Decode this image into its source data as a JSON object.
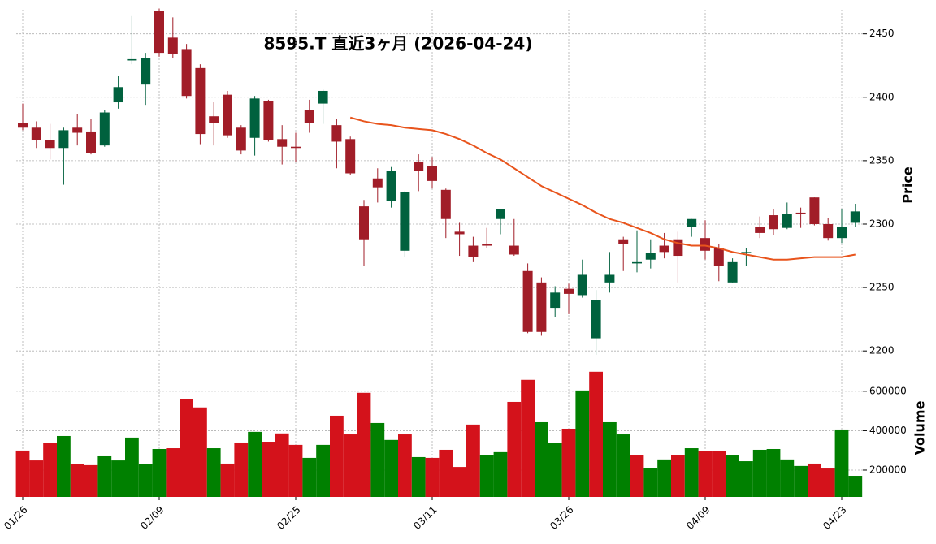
{
  "chart_data": {
    "type": "candlestick",
    "title": "8595.T 直近3ヶ月 (2026-04-24)",
    "ylabel": "Price",
    "categories": [
      "01/26",
      null,
      null,
      null,
      null,
      null,
      null,
      null,
      null,
      null,
      "02/09",
      null,
      null,
      null,
      null,
      null,
      null,
      null,
      null,
      null,
      "02/25",
      null,
      null,
      null,
      null,
      null,
      null,
      null,
      null,
      null,
      "03/11",
      null,
      null,
      null,
      null,
      null,
      null,
      null,
      null,
      null,
      "03/26",
      null,
      null,
      null,
      null,
      null,
      null,
      null,
      null,
      null,
      "04/09",
      null,
      null,
      null,
      null,
      null,
      null,
      null,
      null,
      null,
      "04/23",
      null
    ],
    "open": [
      2380,
      2376,
      2366,
      2360,
      2376,
      2373,
      2362,
      2396,
      2429,
      2410,
      2468,
      2447,
      2438,
      2423,
      2385,
      2402,
      2376,
      2368,
      2397,
      2367,
      2361,
      2390,
      2395,
      2378,
      2367,
      2314,
      2336,
      2318,
      2279,
      2349,
      2346,
      2327,
      2294,
      2283,
      2284,
      2304,
      2283,
      2263,
      2254,
      2234,
      2249,
      2244,
      2210,
      2254,
      2288,
      2269,
      2272,
      2283,
      2288,
      2298,
      2289,
      2281,
      2254,
      2277,
      2298,
      2307,
      2297,
      2309,
      2321,
      2300,
      2289,
      2301
    ],
    "high": [
      2395,
      2381,
      2379,
      2376,
      2387,
      2383,
      2390,
      2417,
      2464,
      2435,
      2470,
      2463,
      2442,
      2426,
      2396,
      2405,
      2378,
      2401,
      2398,
      2378,
      2372,
      2398,
      2406,
      2383,
      2369,
      2319,
      2344,
      2345,
      2326,
      2355,
      2353,
      2328,
      2301,
      2290,
      2297,
      2312,
      2304,
      2269,
      2258,
      2251,
      2253,
      2272,
      2248,
      2278,
      2290,
      2295,
      2288,
      2293,
      2294,
      2304,
      2303,
      2284,
      2273,
      2281,
      2306,
      2312,
      2317,
      2313,
      2321,
      2305,
      2312,
      2316
    ],
    "low": [
      2374,
      2360,
      2351,
      2331,
      2362,
      2355,
      2361,
      2391,
      2426,
      2394,
      2432,
      2431,
      2399,
      2363,
      2362,
      2368,
      2355,
      2354,
      2365,
      2347,
      2349,
      2372,
      2379,
      2344,
      2339,
      2267,
      2317,
      2313,
      2274,
      2326,
      2328,
      2289,
      2275,
      2270,
      2281,
      2292,
      2275,
      2214,
      2212,
      2227,
      2229,
      2242,
      2197,
      2246,
      2263,
      2262,
      2265,
      2273,
      2254,
      2290,
      2272,
      2255,
      2254,
      2267,
      2289,
      2291,
      2296,
      2297,
      2299,
      2287,
      2285,
      2298
    ],
    "close": [
      2376,
      2366,
      2360,
      2374,
      2372,
      2356,
      2388,
      2408,
      2430,
      2431,
      2435,
      2434,
      2401,
      2371,
      2380,
      2370,
      2358,
      2399,
      2366,
      2361,
      2360,
      2380,
      2405,
      2365,
      2340,
      2288,
      2329,
      2342,
      2325,
      2342,
      2334,
      2304,
      2292,
      2274,
      2283,
      2312,
      2276,
      2215,
      2215,
      2246,
      2245,
      2260,
      2240,
      2260,
      2284,
      2270,
      2277,
      2278,
      2275,
      2304,
      2279,
      2267,
      2270,
      2278,
      2293,
      2296,
      2308,
      2308,
      2300,
      2289,
      2298,
      2310
    ],
    "up_color": "#00613e",
    "down_color": "#a11d28",
    "ylim": [
      2195,
      2469
    ],
    "yticks": [
      2200,
      2250,
      2300,
      2350,
      2400,
      2450
    ],
    "grid": true,
    "ma": {
      "color": "#e8541c",
      "values": [
        null,
        null,
        null,
        null,
        null,
        null,
        null,
        null,
        null,
        null,
        null,
        null,
        null,
        null,
        null,
        null,
        null,
        null,
        null,
        null,
        null,
        null,
        null,
        null,
        2384,
        2381,
        2379,
        2378,
        2376,
        2375,
        2374,
        2371,
        2367,
        2362,
        2356,
        2351,
        2344,
        2337,
        2330,
        2325,
        2320,
        2315,
        2309,
        2304,
        2301,
        2297,
        2293,
        2288,
        2285,
        2283,
        2283,
        2281,
        2278,
        2276,
        2274,
        2272,
        2272,
        2273,
        2274,
        2274,
        2274,
        2276
      ]
    },
    "volume": {
      "ylabel": "Volume",
      "up_color": "#008000",
      "down_color": "#d4121b",
      "ylim": [
        64000,
        760000
      ],
      "yticks": [
        200000,
        400000,
        600000
      ],
      "values": [
        299000,
        249000,
        336000,
        373000,
        229000,
        225000,
        270000,
        249000,
        365000,
        229000,
        307000,
        311000,
        559000,
        518000,
        311000,
        233000,
        340000,
        394000,
        344000,
        386000,
        328000,
        262000,
        328000,
        476000,
        381000,
        592000,
        439000,
        353000,
        381000,
        266000,
        262000,
        303000,
        216000,
        431000,
        278000,
        291000,
        546000,
        658000,
        443000,
        336000,
        410000,
        604000,
        699000,
        443000,
        381000,
        274000,
        212000,
        254000,
        278000,
        311000,
        295000,
        295000,
        274000,
        245000,
        303000,
        307000,
        254000,
        221000,
        233000,
        208000,
        406000,
        171000
      ]
    }
  }
}
